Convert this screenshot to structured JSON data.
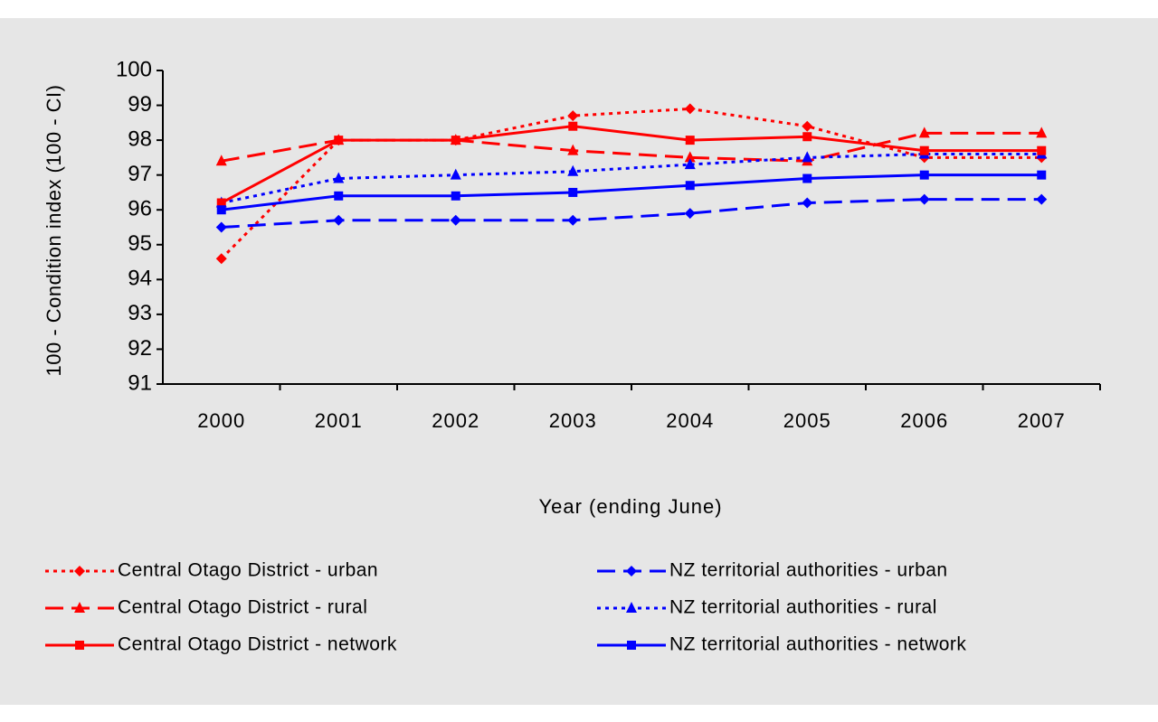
{
  "chart_data": {
    "type": "line",
    "x_label": "Year (ending June)",
    "y_label": "100 - Condition index (100 - CI)",
    "categories": [
      "2000",
      "2001",
      "2002",
      "2003",
      "2004",
      "2005",
      "2006",
      "2007"
    ],
    "ylim": [
      91,
      100
    ],
    "yticks": [
      91,
      92,
      93,
      94,
      95,
      96,
      97,
      98,
      99,
      100
    ],
    "grid": false,
    "series": [
      {
        "name": "Central Otago District - urban",
        "color": "#ff0000",
        "dash": "dotted",
        "marker": "diamond",
        "values": [
          94.6,
          98.0,
          98.0,
          98.7,
          98.9,
          98.4,
          97.5,
          97.5
        ]
      },
      {
        "name": "NZ territorial authorities - urban",
        "color": "#0000ff",
        "dash": "dashed",
        "marker": "diamond",
        "values": [
          95.5,
          95.7,
          95.7,
          95.7,
          95.9,
          96.2,
          96.3,
          96.3
        ]
      },
      {
        "name": "Central Otago District - rural",
        "color": "#ff0000",
        "dash": "dashed",
        "marker": "triangle",
        "values": [
          97.4,
          98.0,
          98.0,
          97.7,
          97.5,
          97.4,
          98.2,
          98.2
        ]
      },
      {
        "name": "NZ territorial authorities - rural",
        "color": "#0000ff",
        "dash": "dotted",
        "marker": "triangle",
        "values": [
          96.2,
          96.9,
          97.0,
          97.1,
          97.3,
          97.5,
          97.6,
          97.6
        ]
      },
      {
        "name": "Central Otago District - network",
        "color": "#ff0000",
        "dash": "solid",
        "marker": "square",
        "values": [
          96.2,
          98.0,
          98.0,
          98.4,
          98.0,
          98.1,
          97.7,
          97.7
        ]
      },
      {
        "name": "NZ territorial authorities - network",
        "color": "#0000ff",
        "dash": "solid",
        "marker": "square",
        "values": [
          96.0,
          96.4,
          96.4,
          96.5,
          96.7,
          96.9,
          97.0,
          97.0
        ]
      }
    ]
  }
}
